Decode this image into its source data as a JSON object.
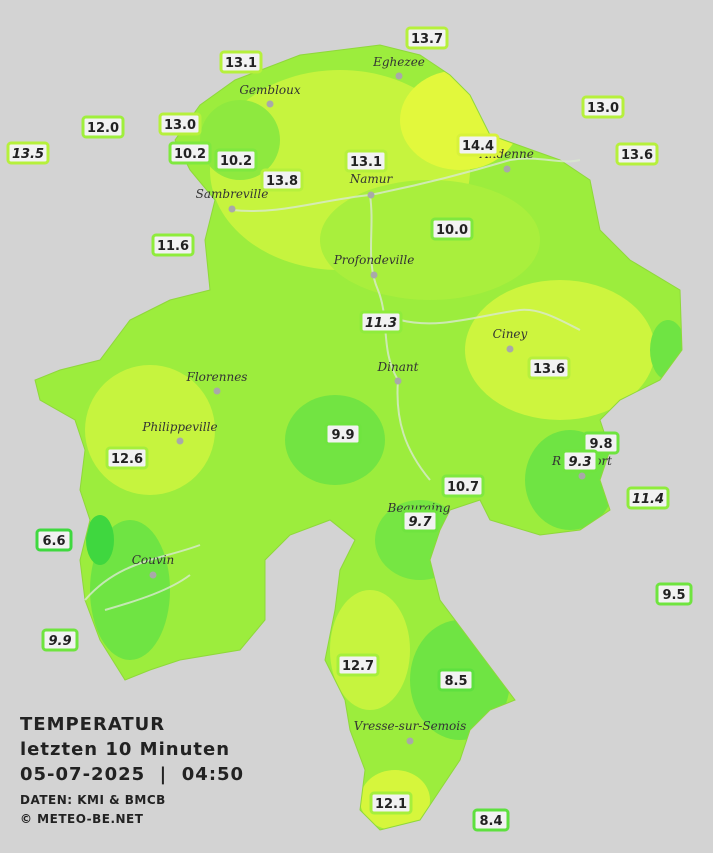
{
  "title": {
    "lines": [
      "TEMPERATUR",
      "letzten 10 Minuten",
      "05-07-2025  |  04:50"
    ],
    "credits": [
      "DATEN: KMI & BMCB",
      "© METEO-BE.NET"
    ]
  },
  "cities": [
    "Eghezee",
    "Gembloux",
    "Andenne",
    "Namur",
    "Sambreville",
    "Profondeville",
    "Ciney",
    "Dinant",
    "Florennes",
    "Philippeville",
    "Rochefort",
    "Beauraing",
    "Couvin",
    "Vresse-sur-Semois"
  ],
  "stations": [
    {
      "label": "13.7",
      "italic": false,
      "color": "#b6f03c"
    },
    {
      "label": "13.1",
      "italic": false,
      "color": "#b6f03c"
    },
    {
      "label": "12.0",
      "italic": false,
      "color": "#9fef3c"
    },
    {
      "label": "13.0",
      "italic": false,
      "color": "#b6f03c"
    },
    {
      "label": "13.5",
      "italic": true,
      "color": "#b6f03c"
    },
    {
      "label": "10.2",
      "italic": false,
      "color": "#7fe83f"
    },
    {
      "label": "10.2",
      "italic": false,
      "color": "#7fe83f"
    },
    {
      "label": "13.1",
      "italic": false,
      "color": "#b6f03c"
    },
    {
      "label": "13.8",
      "italic": false,
      "color": "#b6f03c"
    },
    {
      "label": "14.4",
      "italic": false,
      "color": "#d8f23a"
    },
    {
      "label": "13.0",
      "italic": false,
      "color": "#b6f03c"
    },
    {
      "label": "13.6",
      "italic": false,
      "color": "#b6f03c"
    },
    {
      "label": "11.6",
      "italic": false,
      "color": "#8fec3c"
    },
    {
      "label": "10.0",
      "italic": false,
      "color": "#7fe83f"
    },
    {
      "label": "11.3",
      "italic": true,
      "color": "#8fec3c"
    },
    {
      "label": "13.6",
      "italic": false,
      "color": "#b6f03c"
    },
    {
      "label": "9.9",
      "italic": false,
      "color": "#6fe43f"
    },
    {
      "label": "12.6",
      "italic": false,
      "color": "#a5ef3c"
    },
    {
      "label": "9.8",
      "italic": false,
      "color": "#6fe43f"
    },
    {
      "label": "9.3",
      "italic": true,
      "color": "#6fe43f"
    },
    {
      "label": "10.7",
      "italic": false,
      "color": "#7fe83f"
    },
    {
      "label": "11.4",
      "italic": true,
      "color": "#8fec3c"
    },
    {
      "label": "9.7",
      "italic": true,
      "color": "#6fe43f"
    },
    {
      "label": "6.6",
      "italic": false,
      "color": "#3fd83f"
    },
    {
      "label": "9.5",
      "italic": false,
      "color": "#6fe43f"
    },
    {
      "label": "9.9",
      "italic": true,
      "color": "#6fe43f"
    },
    {
      "label": "12.7",
      "italic": false,
      "color": "#a5ef3c"
    },
    {
      "label": "8.5",
      "italic": false,
      "color": "#5ee03f"
    },
    {
      "label": "12.1",
      "italic": false,
      "color": "#a5ef3c"
    },
    {
      "label": "8.4",
      "italic": false,
      "color": "#5ee03f"
    }
  ]
}
